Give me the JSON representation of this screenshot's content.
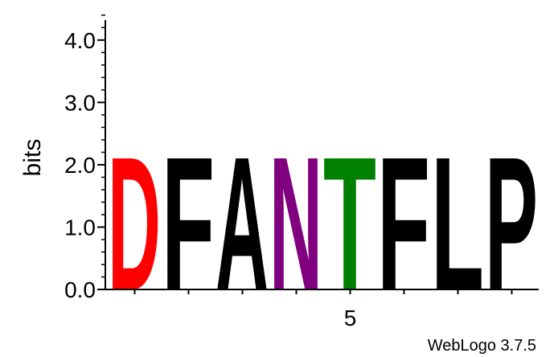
{
  "chart_data": {
    "type": "sequence-logo",
    "ylabel": "bits",
    "ylim": [
      0,
      4.32
    ],
    "y_ticks": [
      {
        "value": 0,
        "label": "0.0"
      },
      {
        "value": 1,
        "label": "1.0"
      },
      {
        "value": 2,
        "label": "2.0"
      },
      {
        "value": 3,
        "label": "3.0"
      },
      {
        "value": 4,
        "label": "4.0"
      }
    ],
    "y_minor_step": 0.2,
    "x_labels": [
      {
        "position": 5,
        "label": "5"
      }
    ],
    "positions": [
      {
        "position": 1,
        "letter": "D",
        "bits": 2.2,
        "color": "#ff0000"
      },
      {
        "position": 2,
        "letter": "F",
        "bits": 2.2,
        "color": "#000000"
      },
      {
        "position": 3,
        "letter": "A",
        "bits": 2.2,
        "color": "#000000"
      },
      {
        "position": 4,
        "letter": "N",
        "bits": 2.2,
        "color": "#800080"
      },
      {
        "position": 5,
        "letter": "T",
        "bits": 2.2,
        "color": "#008000"
      },
      {
        "position": 6,
        "letter": "F",
        "bits": 2.2,
        "color": "#000000"
      },
      {
        "position": 7,
        "letter": "L",
        "bits": 2.2,
        "color": "#000000"
      },
      {
        "position": 8,
        "letter": "P",
        "bits": 2.2,
        "color": "#000000"
      }
    ]
  },
  "credit": "WebLogo 3.7.5"
}
